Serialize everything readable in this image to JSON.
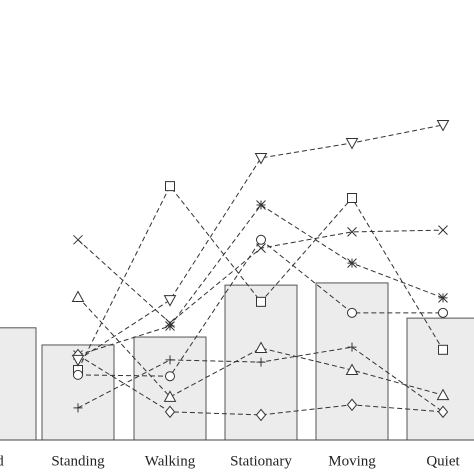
{
  "chart_data": {
    "type": "bar_line",
    "categories": [
      "d",
      "Standing",
      "Walking",
      "Stationary",
      "Moving",
      "Quiet"
    ],
    "values": [
      25.5,
      21.6,
      23.4,
      35.2,
      35.7,
      27.7
    ],
    "color": "#ececec",
    "ylim": [
      0,
      100
    ],
    "series": [
      {
        "marker": "square",
        "color": "#333333",
        "values": [
          null,
          15.9,
          57.7,
          31.4,
          55.0,
          20.5
        ]
      },
      {
        "marker": "x",
        "color": "#333333",
        "values": [
          null,
          45.5,
          26.6,
          43.6,
          47.3,
          47.7
        ]
      },
      {
        "marker": "star",
        "color": "#333333",
        "values": [
          null,
          19.3,
          25.9,
          53.4,
          40.2,
          32.3
        ]
      },
      {
        "marker": "circle",
        "color": "#333333",
        "values": [
          null,
          14.8,
          14.5,
          45.5,
          28.9,
          28.9
        ]
      },
      {
        "marker": "triangle-up",
        "color": "#333333",
        "values": [
          null,
          32.5,
          9.8,
          20.9,
          15.9,
          10.2
        ]
      },
      {
        "marker": "plus",
        "color": "#333333",
        "values": [
          null,
          7.3,
          18.2,
          17.7,
          21.1,
          6.4
        ]
      },
      {
        "marker": "diamond",
        "color": "#333333",
        "values": [
          null,
          19.3,
          6.4,
          5.7,
          8.0,
          6.4
        ]
      },
      {
        "marker": "triangle-down",
        "color": "#333333",
        "values": [
          null,
          18.2,
          31.8,
          64.1,
          67.5,
          71.6
        ]
      }
    ]
  }
}
